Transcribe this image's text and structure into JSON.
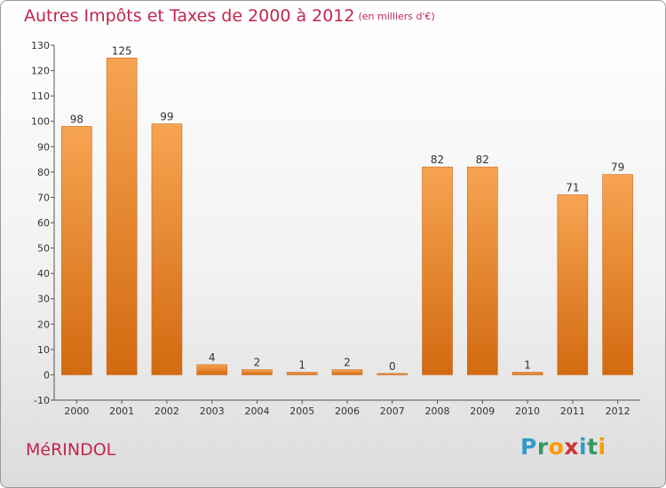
{
  "header": {
    "title": "Autres Impôts et Taxes de 2000 à 2012",
    "unit": "(en milliers d'€)"
  },
  "footer": {
    "commune": "MéRINDOL",
    "logo": {
      "letters": [
        "P",
        "r",
        "o",
        "x",
        "i",
        "t",
        "i"
      ],
      "colors": [
        "#3399cc",
        "#339966",
        "#ff9900",
        "#cc3333",
        "#3399cc",
        "#339966",
        "#ff9900"
      ]
    }
  },
  "chart_data": {
    "type": "bar",
    "title": "Autres Impôts et Taxes de 2000 à 2012",
    "subtitle": "(en milliers d'€)",
    "xlabel": "",
    "ylabel": "",
    "categories": [
      "2000",
      "2001",
      "2002",
      "2003",
      "2004",
      "2005",
      "2006",
      "2007",
      "2008",
      "2009",
      "2010",
      "2011",
      "2012"
    ],
    "values": [
      98,
      125,
      99,
      4,
      2,
      1,
      2,
      0,
      82,
      82,
      1,
      71,
      79
    ],
    "ylim": [
      -10,
      130
    ],
    "yticks": [
      -10,
      0,
      10,
      20,
      30,
      40,
      50,
      60,
      70,
      80,
      90,
      100,
      110,
      120,
      130
    ],
    "grid": false,
    "legend": "none",
    "bar_color_top": "#f7a452",
    "bar_color_bottom": "#d26a10"
  }
}
